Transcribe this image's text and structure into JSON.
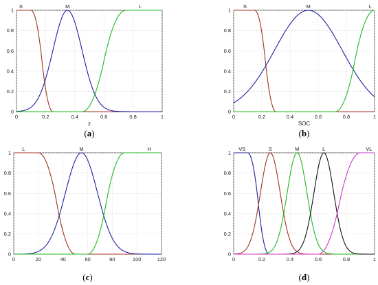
{
  "chart_data": [
    {
      "id": "a",
      "type": "line",
      "caption": "a",
      "xlabel": "z",
      "ylabel": "",
      "xlim": [
        0,
        1
      ],
      "ylim": [
        0,
        1
      ],
      "xticks": [
        0,
        0.2,
        0.4,
        0.6,
        0.8,
        1
      ],
      "xtick_labels": [
        "0",
        "0.2",
        "0.4",
        "0.6",
        "0.8",
        "1"
      ],
      "yticks": [
        0,
        0.2,
        0.4,
        0.6,
        0.8,
        1
      ],
      "ytick_labels": [
        "0",
        "0.2",
        "0.4",
        "0.6",
        "0.8",
        "1"
      ],
      "grid": true,
      "series": [
        {
          "name": "S",
          "color": "#a0321e",
          "shape": "zmf",
          "params": [
            0.1,
            0.25
          ]
        },
        {
          "name": "M",
          "color": "#1f1fa0",
          "shape": "gaussmf",
          "params": [
            0.35,
            0.1
          ]
        },
        {
          "name": "L",
          "color": "#1eb81e",
          "shape": "smf",
          "params": [
            0.45,
            0.75
          ]
        }
      ],
      "series_labels_x": [
        0.03,
        0.35,
        0.85
      ]
    },
    {
      "id": "b",
      "type": "line",
      "caption": "b",
      "xlabel": "SOC",
      "ylabel": "",
      "xlim": [
        0,
        1
      ],
      "ylim": [
        0,
        1
      ],
      "xticks": [
        0,
        0.2,
        0.4,
        0.6,
        0.8,
        1
      ],
      "xtick_labels": [
        "0",
        "0.2",
        "0.4",
        "0.6",
        "0.8",
        "1"
      ],
      "yticks": [
        0,
        0.2,
        0.4,
        0.6,
        0.8,
        1
      ],
      "ytick_labels": [
        "0",
        "0.2",
        "0.4",
        "0.6",
        "0.8",
        "1"
      ],
      "grid": true,
      "series": [
        {
          "name": "S",
          "color": "#a0321e",
          "shape": "zmf",
          "params": [
            0.15,
            0.3
          ]
        },
        {
          "name": "M",
          "color": "#1f1fa0",
          "shape": "gaussmf",
          "params": [
            0.53,
            0.24
          ]
        },
        {
          "name": "L",
          "color": "#1eb81e",
          "shape": "smf",
          "params": [
            0.72,
            1.0
          ]
        }
      ],
      "series_labels_x": [
        0.08,
        0.53,
        0.97
      ]
    },
    {
      "id": "c",
      "type": "line",
      "caption": "c",
      "xlabel": "",
      "ylabel": "",
      "xlim": [
        0,
        120
      ],
      "ylim": [
        0,
        1
      ],
      "xticks": [
        0,
        20,
        40,
        60,
        80,
        100,
        120
      ],
      "xtick_labels": [
        "0",
        "20",
        "40",
        "60",
        "80",
        "100",
        "120"
      ],
      "yticks": [
        0,
        0.2,
        0.4,
        0.6,
        0.8,
        1
      ],
      "ytick_labels": [
        "0",
        "0.2",
        "0.4",
        "0.6",
        "0.8",
        "1"
      ],
      "grid": true,
      "series": [
        {
          "name": "L",
          "color": "#a0321e",
          "shape": "zmf",
          "params": [
            20,
            50
          ]
        },
        {
          "name": "M",
          "color": "#1f1fa0",
          "shape": "gaussmf",
          "params": [
            55,
            13
          ]
        },
        {
          "name": "H",
          "color": "#1eb81e",
          "shape": "smf",
          "params": [
            60,
            90
          ]
        }
      ],
      "series_labels_x": [
        8,
        55,
        110
      ]
    },
    {
      "id": "d",
      "type": "line",
      "caption": "d",
      "xlabel": "",
      "ylabel": "",
      "xlim": [
        0,
        1
      ],
      "ylim": [
        0,
        1
      ],
      "xticks": [
        0,
        0.2,
        0.4,
        0.6,
        0.8,
        1
      ],
      "xtick_labels": [
        "0",
        "0.2",
        "0.4",
        "0.6",
        "0.8",
        "1"
      ],
      "yticks": [
        0,
        0.2,
        0.4,
        0.6,
        0.8,
        1
      ],
      "ytick_labels": [
        "0",
        "0.2",
        "0.4",
        "0.6",
        "0.8",
        "1"
      ],
      "grid": true,
      "series": [
        {
          "name": "VS",
          "color": "#1f1fa0",
          "shape": "zmf",
          "params": [
            0.1,
            0.25
          ]
        },
        {
          "name": "S",
          "color": "#a0321e",
          "shape": "gaussmf",
          "params": [
            0.26,
            0.07
          ]
        },
        {
          "name": "M",
          "color": "#1eb81e",
          "shape": "gaussmf",
          "params": [
            0.45,
            0.07
          ]
        },
        {
          "name": "L",
          "color": "#111111",
          "shape": "gaussmf",
          "params": [
            0.64,
            0.07
          ]
        },
        {
          "name": "VL",
          "color": "#cc33cc",
          "shape": "smf",
          "params": [
            0.6,
            0.9
          ]
        }
      ],
      "series_labels_x": [
        0.06,
        0.26,
        0.45,
        0.64,
        0.96
      ]
    }
  ]
}
